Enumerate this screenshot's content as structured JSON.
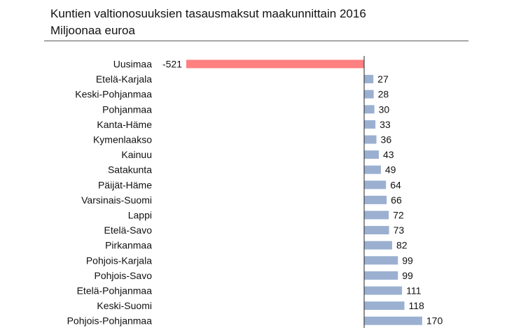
{
  "title": "Kuntien valtionosuuksien tasausmaksut maakunnittain 2016",
  "subtitle": "Miljoonaa euroa",
  "colors": {
    "negative_bar": "#ff8080",
    "positive_bar": "#9bb0d1",
    "axis": "#222222"
  },
  "chart_data": {
    "type": "bar",
    "orientation": "horizontal",
    "title": "Kuntien valtionosuuksien tasausmaksut maakunnittain 2016",
    "subtitle": "Miljoonaa euroa",
    "categories": [
      "Uusimaa",
      "Etelä-Karjala",
      "Keski-Pohjanmaa",
      "Pohjanmaa",
      "Kanta-Häme",
      "Kymenlaakso",
      "Kainuu",
      "Satakunta",
      "Päijät-Häme",
      "Varsinais-Suomi",
      "Lappi",
      "Etelä-Savo",
      "Pirkanmaa",
      "Pohjois-Karjala",
      "Pohjois-Savo",
      "Etelä-Pohjanmaa",
      "Keski-Suomi",
      "Pohjois-Pohjanmaa"
    ],
    "values": [
      -521,
      27,
      28,
      30,
      33,
      36,
      43,
      49,
      64,
      66,
      72,
      73,
      82,
      99,
      99,
      111,
      118,
      170
    ],
    "xlim": [
      -521,
      170
    ],
    "grid": false,
    "legend": "none"
  }
}
